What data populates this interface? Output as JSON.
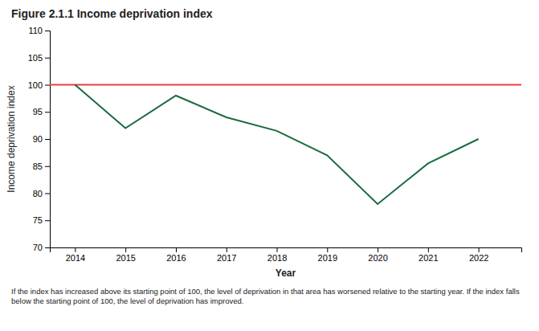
{
  "chart_data": {
    "type": "line",
    "title": "Figure 2.1.1 Income deprivation index",
    "x_label": "Year",
    "y_label": "Income deprivation index",
    "x": [
      2014,
      2015,
      2016,
      2017,
      2018,
      2019,
      2020,
      2021,
      2022
    ],
    "values": [
      100,
      92,
      98,
      94,
      91.5,
      87,
      78,
      85.5,
      90
    ],
    "color": "#1a6b40",
    "reference_line": {
      "value": 100,
      "color": "#e84040"
    },
    "xlim": [
      2013.5,
      2022.85
    ],
    "xticks": [
      2014,
      2015,
      2016,
      2017,
      2018,
      2019,
      2020,
      2021,
      2022
    ],
    "ylim": [
      70,
      110
    ],
    "yticks": [
      70,
      75,
      80,
      85,
      90,
      95,
      100,
      105,
      110
    ],
    "footnote": [
      "If the index has increased above its starting point of 100, the level of deprivation in that area has worsened relative to the starting year. If the index falls",
      "below the starting point of 100, the level of deprivation has improved."
    ]
  }
}
